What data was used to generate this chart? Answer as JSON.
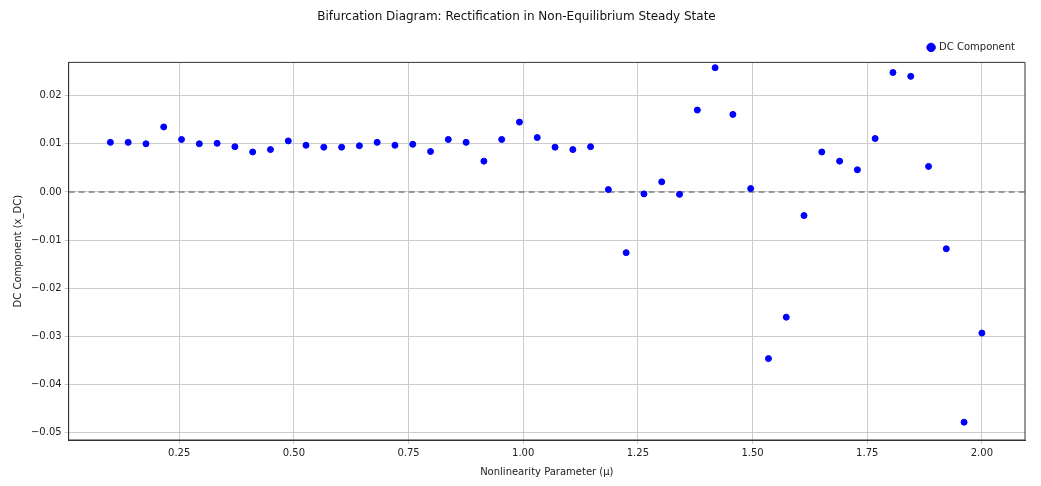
{
  "chart_data": {
    "type": "scatter",
    "title": "Bifurcation Diagram: Rectification in Non-Equilibrium Steady State",
    "xlabel": "Nonlinearity Parameter (μ)",
    "ylabel": "DC Component (x_DC)",
    "x": [
      0.1,
      0.1388,
      0.1776,
      0.2163,
      0.2551,
      0.2939,
      0.3327,
      0.3714,
      0.4102,
      0.449,
      0.4878,
      0.5265,
      0.5653,
      0.6041,
      0.6429,
      0.6816,
      0.7204,
      0.7592,
      0.798,
      0.8367,
      0.8755,
      0.9143,
      0.9531,
      0.9918,
      1.0306,
      1.0694,
      1.1082,
      1.1469,
      1.1857,
      1.2245,
      1.2633,
      1.302,
      1.3408,
      1.3796,
      1.4184,
      1.4571,
      1.4959,
      1.5347,
      1.5735,
      1.6122,
      1.651,
      1.6898,
      1.7286,
      1.7673,
      1.8061,
      1.8449,
      1.8837,
      1.9224,
      1.9612,
      2.0
    ],
    "series": [
      {
        "name": "DC Component",
        "color": "#0000ff",
        "values": [
          0.0103,
          0.0103,
          0.01,
          0.0135,
          0.0109,
          0.01,
          0.0101,
          0.0094,
          0.0083,
          0.0088,
          0.0106,
          0.0097,
          0.0093,
          0.0093,
          0.0096,
          0.0103,
          0.0097,
          0.0099,
          0.0084,
          0.0109,
          0.0103,
          0.0064,
          0.0109,
          0.0145,
          0.0113,
          0.0093,
          0.0088,
          0.0094,
          0.0005,
          -0.0126,
          -0.0004,
          0.0021,
          -0.0005,
          0.017,
          0.0258,
          0.0161,
          0.0007,
          -0.0346,
          -0.026,
          -0.0049,
          0.0083,
          0.0064,
          0.0046,
          0.0111,
          0.0248,
          0.024,
          0.0053,
          -0.0118,
          -0.0478,
          -0.0293
        ]
      }
    ],
    "xlim": [
      0.009,
      2.094
    ],
    "ylim": [
      -0.0515,
      0.0269
    ],
    "xticks": [
      {
        "value": 0.25,
        "label": "0.25"
      },
      {
        "value": 0.5,
        "label": "0.50"
      },
      {
        "value": 0.75,
        "label": "0.75"
      },
      {
        "value": 1,
        "label": "1.00"
      },
      {
        "value": 1.25,
        "label": "1.25"
      },
      {
        "value": 1.5,
        "label": "1.50"
      },
      {
        "value": 1.75,
        "label": "1.75"
      },
      {
        "value": 2,
        "label": "2.00"
      }
    ],
    "yticks": [
      {
        "value": -0.05,
        "label": "−0.05"
      },
      {
        "value": -0.04,
        "label": "−0.04"
      },
      {
        "value": -0.03,
        "label": "−0.03"
      },
      {
        "value": -0.02,
        "label": "−0.02"
      },
      {
        "value": -0.01,
        "label": "−0.01"
      },
      {
        "value": 0,
        "label": "0.00"
      },
      {
        "value": 0.01,
        "label": "0.01"
      },
      {
        "value": 0.02,
        "label": "0.02"
      }
    ],
    "ref_lines": [
      {
        "axis": "y",
        "value": 0,
        "color": "#808080",
        "line_style": "dashed"
      }
    ],
    "grid": true,
    "legend": "top right",
    "marker": "circle"
  }
}
